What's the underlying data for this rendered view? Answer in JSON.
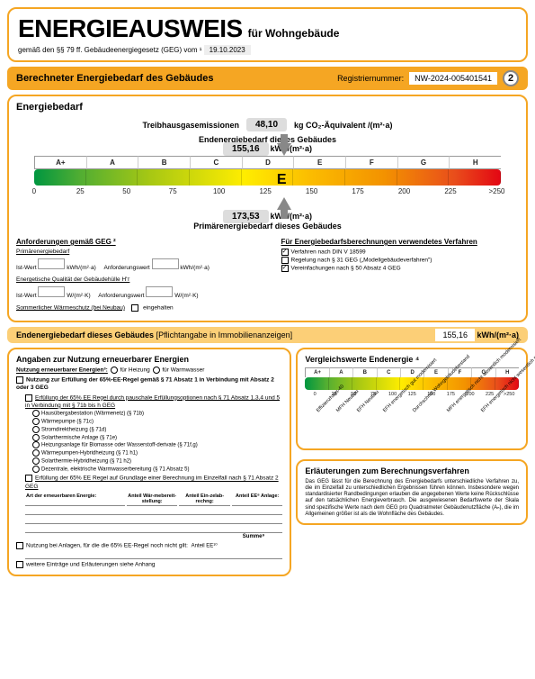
{
  "header": {
    "title_main": "ENERGIEAUSWEIS",
    "title_sub": "für Wohngebäude",
    "subtitle_prefix": "gemäß den §§ 79 ff. Gebäudeenergiegesetz (GEG) vom ¹",
    "date": "19.10.2023"
  },
  "section_bar": {
    "title": "Berechneter Energiebedarf des Gebäudes",
    "reg_label": "Registriernummer:",
    "reg_value": "NW-2024-005401541",
    "page_num": "2"
  },
  "energy": {
    "title": "Energiebedarf",
    "ghg_label": "Treibhausgasemissionen",
    "ghg_value": "48,10",
    "ghg_unit": "kg CO₂-Äquivalent /(m²·a)",
    "end_label": "Endenergiebedarf dieses Gebäudes",
    "end_value": "155,16",
    "end_unit": "kWh/(m²·a)",
    "prim_label": "Primärenergiebedarf dieses Gebäudes",
    "prim_value": "173,53",
    "prim_unit": "kWh/(m²·a)",
    "scale_classes": [
      "A+",
      "A",
      "B",
      "C",
      "D",
      "E",
      "F",
      "G",
      "H"
    ],
    "scale_ticks": [
      "0",
      "25",
      "50",
      "75",
      "100",
      "125",
      "150",
      "175",
      "200",
      "225",
      ">250"
    ],
    "marker_class": "E",
    "marker_position_pct": 55
  },
  "requirements": {
    "left_title": "Anforderungen gemäß GEG ²",
    "prim_label": "Primärenergiebedarf",
    "ist_label": "Ist-Wert",
    "unit_kwh": "kWh/(m²·a)",
    "anf_label": "Anforderungswert",
    "envelope_label": "Energetische Qualität der Gebäudehülle H'ᴛ",
    "unit_wmk": "W/(m²·K)",
    "summer_label": "Sommerlicher Wärmeschutz (bei Neubau)",
    "summer_opt": "eingehalten",
    "right_title": "Für Energiebedarfsberechnungen verwendetes Verfahren",
    "opt1": "Verfahren nach DIN V 18599",
    "opt2": "Regelung nach § 31 GEG („Modellgebäudeverfahren\")",
    "opt3": "Vereinfachungen nach § 50 Absatz 4 GEG",
    "opt1_checked": true,
    "opt2_checked": false,
    "opt3_checked": true
  },
  "endbar": {
    "label": "Endenergiebedarf dieses Gebäudes",
    "note": "[Pflichtangabe in Immobilienanzeigen]",
    "value": "155,16",
    "unit": "kWh/(m²·a)"
  },
  "renewable": {
    "title": "Angaben zur Nutzung erneuerbarer Energien",
    "line1": "Nutzung erneuerbarer Energien³:",
    "r1": "für Heizung",
    "r2": "für Warmwasser",
    "line2": "Nutzung zur Erfüllung der 65%-EE-Regel gemäß § 71 Absatz 1 in Verbindung mit Absatz 2 oder 3 GEG",
    "sub1": "Erfüllung der 65% EE Regel durch pauschale Erfüllungsoptionen nach § 71 Absatz 1,3,4 und 5 in Verbindung mit § 71b bis h GEG",
    "opts": [
      "Hausübergabestation (Wärmenetz) (§ 71b)",
      "Wärmepumpe (§ 71c)",
      "Stromdirektheizung (§ 71d)",
      "Solarthermische Anlage (§ 71e)",
      "Heizungsanlage für Biomasse oder Wasserstoff-derivate (§ 71f,g)",
      "Wärmepumpen-Hybridheizung (§ 71 h1)",
      "Solarthermie-Hybridheizung (§ 71 h2)",
      "Dezentrale, elektrische Warmwasserbereitung (§ 71 Absatz 5)"
    ],
    "sub2": "Erfüllung der 65% EE Regel auf Grundlage einer Berechnung im Einzelfall nach § 71 Absatz 2 GEG",
    "th1": "Art der erneuerbaren Energie:",
    "th2": "Anteil Wär-mebereit-stellung:",
    "th3": "Anteil Ein-zelab-rechng:",
    "th4": "Anteil EE⁸ Anlage:",
    "sum": "Summe⁹",
    "line3": "Nutzung bei Anlagen, für die die 65% EE-Regel noch nicht gilt:",
    "anteil": "Anteil EE¹⁰",
    "line4": "weitere Einträge und Erläuterungen siehe Anhang"
  },
  "compare": {
    "title": "Vergleichswerte Endenergie ⁴",
    "classes": [
      "A+",
      "A",
      "B",
      "C",
      "D",
      "E",
      "F",
      "G",
      "H"
    ],
    "ticks": [
      "0",
      "25",
      "50",
      "75",
      "100",
      "125",
      "150",
      "175",
      "200",
      "225",
      ">250"
    ],
    "labels": [
      "Effizienzhaus-40",
      "MFH Neubau",
      "EFH Neubau",
      "EFH energetisch gut modernisiert",
      "Durchschnitt Wohngebäudebestand",
      "MFH energetisch nicht wesentlich modernisiert",
      "EFH energetisch nicht wesentlich modernisiert"
    ]
  },
  "info": {
    "title": "Erläuterungen zum Berechnungsverfahren",
    "text": "Das GEG lässt für die Berechnung des Energiebedarfs unterschiedliche Verfahren zu, die im Einzelfall zu unterschiedlichen Ergebnissen führen können. Insbesondere wegen standardisierter Randbedingungen erlauben die angegebenen Werte keine Rückschlüsse auf den tatsächlichen Energieverbrauch. Die ausgewiesenen Bedarfswerte der Skala sind spezifische Werte nach dem GEG pro Quadratmeter Gebäudenutzfläche (Aₙ), die im Allgemeinen größer ist als die Wohnfläche des Gebäudes."
  }
}
